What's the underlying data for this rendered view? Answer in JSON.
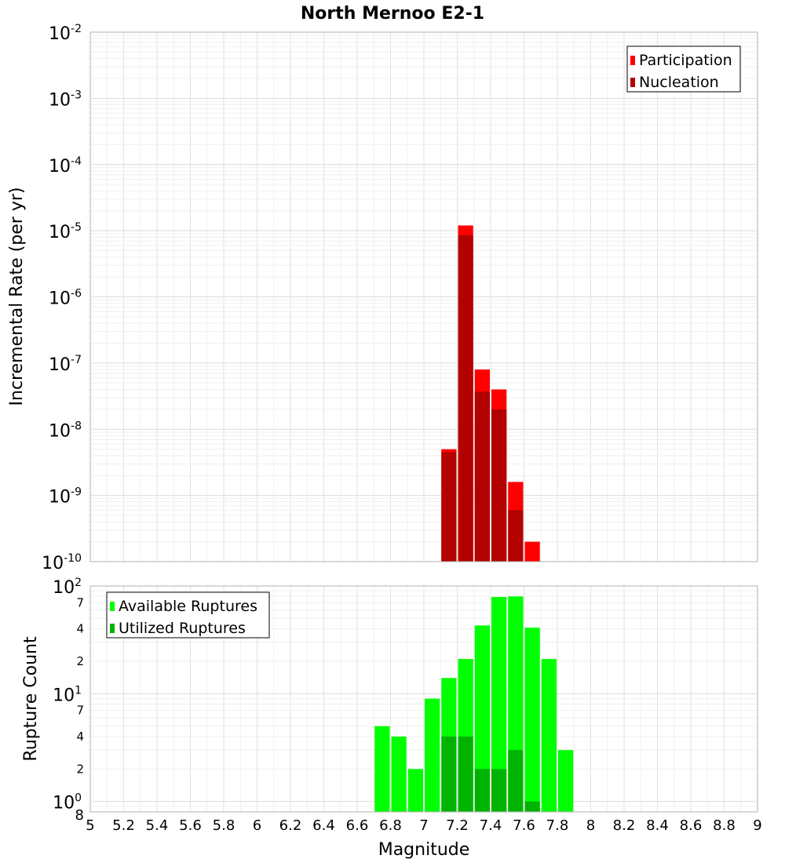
{
  "chart_data": [
    {
      "type": "bar",
      "title": "North Mernoo E2-1",
      "xlabel": "Magnitude",
      "ylabel": "Incremental Rate (per yr)",
      "xlim": [
        5,
        9
      ],
      "x_ticks": [
        "5",
        "5.2",
        "5.4",
        "5.6",
        "5.8",
        "6",
        "6.2",
        "6.4",
        "6.6",
        "6.8",
        "7",
        "7.2",
        "7.4",
        "7.6",
        "7.8",
        "8",
        "8.2",
        "8.4",
        "8.6",
        "8.8",
        "9"
      ],
      "yscale": "log",
      "ylim": [
        1e-10,
        0.01
      ],
      "y_tick_bases": [
        "10",
        "10",
        "10",
        "10",
        "10",
        "10",
        "10",
        "10",
        "10"
      ],
      "y_tick_exponents": [
        "-10",
        "-9",
        "-8",
        "-7",
        "-6",
        "-5",
        "-4",
        "-3",
        "-2"
      ],
      "grid": true,
      "legend_position": "top-right",
      "bar_width": 0.1,
      "colors": {
        "participation": "#ff0000",
        "nucleation": "#b30000"
      },
      "series": [
        {
          "name": "Participation",
          "x": [
            7.15,
            7.25,
            7.35,
            7.45,
            7.55,
            7.65
          ],
          "values": [
            5e-09,
            1.2e-05,
            8e-08,
            4e-08,
            1.6e-09,
            2e-10
          ]
        },
        {
          "name": "Nucleation",
          "x": [
            7.15,
            7.25,
            7.35,
            7.45,
            7.55
          ],
          "values": [
            4.5e-09,
            8.5e-06,
            3.7e-08,
            2e-08,
            6e-10
          ]
        }
      ]
    },
    {
      "type": "bar",
      "xlabel": "Magnitude",
      "ylabel": "Rupture Count",
      "xlim": [
        5,
        9
      ],
      "yscale": "log",
      "ylim": [
        0.8,
        100
      ],
      "major_tick_bases": [
        "10",
        "10",
        "10"
      ],
      "major_tick_exponents": [
        "0",
        "1",
        "2"
      ],
      "minor_tick_labels": [
        "8",
        "2",
        "4",
        "7",
        "2",
        "4",
        "7"
      ],
      "grid": true,
      "legend_position": "top-left",
      "bar_width": 0.1,
      "colors": {
        "available": "#00ff00",
        "utilized": "#00b300"
      },
      "series": [
        {
          "name": "Available Ruptures",
          "x": [
            6.75,
            6.85,
            6.95,
            7.05,
            7.15,
            7.25,
            7.35,
            7.45,
            7.55,
            7.65,
            7.75,
            7.85
          ],
          "values": [
            5,
            4,
            2,
            9,
            14,
            21,
            43,
            79,
            80,
            41,
            21,
            3
          ]
        },
        {
          "name": "Utilized Ruptures",
          "x": [
            7.15,
            7.25,
            7.35,
            7.45,
            7.55,
            7.65
          ],
          "values": [
            4,
            4,
            2,
            2,
            3,
            1
          ]
        }
      ]
    }
  ]
}
